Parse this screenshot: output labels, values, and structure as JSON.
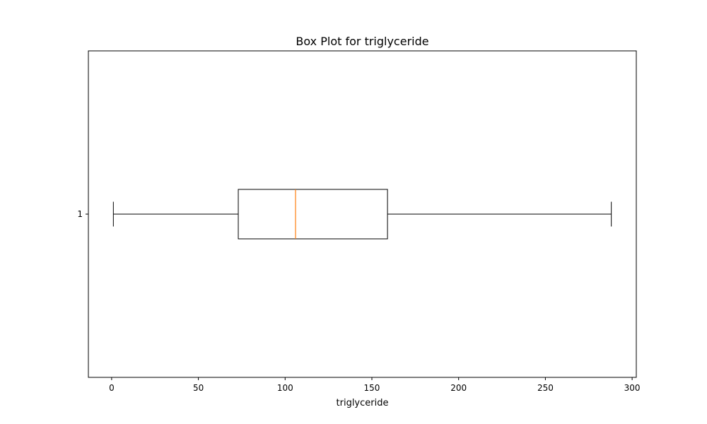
{
  "chart_data": {
    "type": "box",
    "orientation": "horizontal",
    "title": "Box Plot for triglyceride",
    "xlabel": "triglyceride",
    "ylabel": "",
    "xlim": [
      -13.4,
      302.4
    ],
    "xticks": [
      0,
      50,
      100,
      150,
      200,
      250,
      300
    ],
    "yticks": [
      "1"
    ],
    "grid": false,
    "boxes": [
      {
        "label": "1",
        "whisker_low": 1,
        "q1": 73,
        "median": 106,
        "q3": 159,
        "whisker_high": 288,
        "outliers": []
      }
    ],
    "colors": {
      "box": "#000000",
      "median": "#ff7f0e"
    }
  }
}
